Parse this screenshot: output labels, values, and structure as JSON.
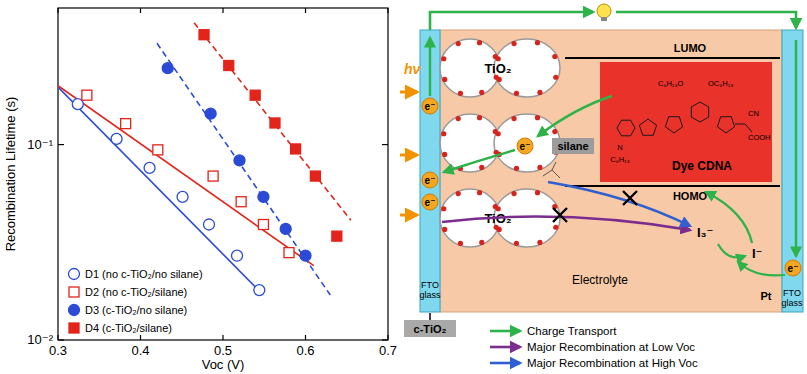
{
  "chart_data": {
    "type": "scatter",
    "y_label": "Recombination Lifetime (s)",
    "x_label": "Voc (V)",
    "xlim": [
      0.3,
      0.7
    ],
    "xticks": [
      0.3,
      0.4,
      0.5,
      0.6,
      0.7
    ],
    "ylim": [
      0.01,
      0.5
    ],
    "yticks": [
      {
        "value": 0.01,
        "label": "10⁻²"
      },
      {
        "value": 0.1,
        "label": "10⁻¹"
      }
    ],
    "log": "y",
    "legend": "lower left",
    "series": [
      {
        "name": "D1 (no c-TiO₂/no silane)",
        "color": "#2b4bd6",
        "marker": "open-circle",
        "line_style": "solid",
        "x": [
          0.324,
          0.371,
          0.411,
          0.451,
          0.483,
          0.517,
          0.544
        ],
        "values": [
          0.161,
          0.107,
          0.076,
          0.054,
          0.039,
          0.027,
          0.018
        ],
        "fit_x": [
          0.3,
          0.547
        ],
        "fit_values": [
          0.197,
          0.0173
        ]
      },
      {
        "name": "D2 (no c-TiO₂/silane)",
        "color": "#e3241b",
        "marker": "open-square",
        "line_style": "solid",
        "x": [
          0.335,
          0.382,
          0.421,
          0.488,
          0.522,
          0.549,
          0.58
        ],
        "values": [
          0.179,
          0.128,
          0.094,
          0.069,
          0.051,
          0.039,
          0.028
        ],
        "fit_x": [
          0.3,
          0.61
        ],
        "fit_values": [
          0.2,
          0.024
        ]
      },
      {
        "name": "D3 (c-TiO₂/no silane)",
        "color": "#2b4bd6",
        "marker": "circle",
        "line_style": "dashed",
        "x": [
          0.433,
          0.485,
          0.52,
          0.549,
          0.576,
          0.6
        ],
        "values": [
          0.246,
          0.144,
          0.083,
          0.054,
          0.037,
          0.027
        ],
        "fit_x": [
          0.42,
          0.63
        ],
        "fit_values": [
          0.33,
          0.017
        ]
      },
      {
        "name": "D4 (c-TiO₂/silane)",
        "color": "#e3241b",
        "marker": "square",
        "line_style": "dashed",
        "x": [
          0.477,
          0.507,
          0.539,
          0.563,
          0.588,
          0.612,
          0.638
        ],
        "values": [
          0.365,
          0.254,
          0.179,
          0.129,
          0.095,
          0.069,
          0.034
        ],
        "fit_x": [
          0.465,
          0.655
        ],
        "fit_values": [
          0.42,
          0.041
        ]
      }
    ]
  },
  "diagram": {
    "light": "hν",
    "left_electrode": "FTO glass",
    "right_electrode": "FTO glass",
    "compact_layer": "c-TiO₂",
    "particles": [
      "TiO₂",
      "TiO₂"
    ],
    "electron": "e⁻",
    "silane": "silane",
    "dye": {
      "name": "Dye CDNA",
      "lumo": "LUMO",
      "homo": "HOMO",
      "groups": [
        "C₆H₁₃O",
        "OC₆H₁₃",
        "CN",
        "COOH",
        "N",
        "C₆H₁₃"
      ]
    },
    "electrolyte": "Electrolyte",
    "triiodide": "I₃⁻",
    "iodide": "I⁻",
    "counter_electrode": "Pt",
    "legend": [
      {
        "label": "Charge Transport",
        "color": "#2db34a"
      },
      {
        "label": "Major Recombination at Low Voc",
        "color": "#7b2d8e"
      },
      {
        "label": "Major Recombination at High Voc",
        "color": "#2f5fd0"
      }
    ]
  }
}
